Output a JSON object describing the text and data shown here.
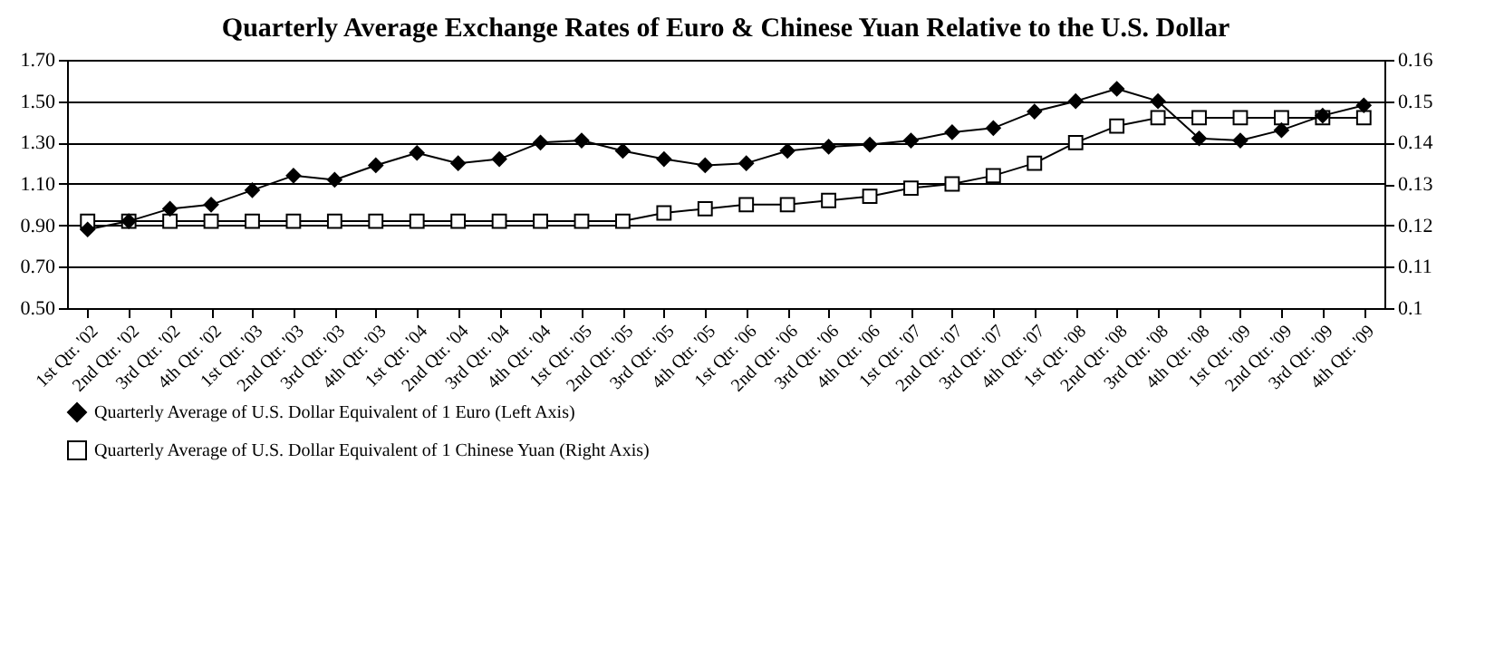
{
  "chart_data": {
    "type": "line",
    "title": "Quarterly Average Exchange Rates of Euro & Chinese Yuan Relative to the U.S. Dollar",
    "categories": [
      "1st Qtr. '02",
      "2nd Qtr. '02",
      "3rd Qtr. '02",
      "4th Qtr. '02",
      "1st Qtr. '03",
      "2nd Qtr. '03",
      "3rd Qtr. '03",
      "4th Qtr. '03",
      "1st Qtr. '04",
      "2nd Qtr. '04",
      "3rd Qtr. '04",
      "4th Qtr. '04",
      "1st Qtr. '05",
      "2nd Qtr. '05",
      "3rd Qtr. '05",
      "4th Qtr. '05",
      "1st Qtr. '06",
      "2nd Qtr. '06",
      "3rd Qtr. '06",
      "4th Qtr. '06",
      "1st Qtr. '07",
      "2nd Qtr. '07",
      "3rd Qtr. '07",
      "4th Qtr. '07",
      "1st Qtr. '08",
      "2nd Qtr. '08",
      "3rd Qtr. '08",
      "4th Qtr. '08",
      "1st Qtr. '09",
      "2nd Qtr. '09",
      "3rd Qtr. '09",
      "4th Qtr. '09"
    ],
    "series": [
      {
        "name": "Quarterly Average  of U.S. Dollar Equivalent of 1 Euro (Left Axis)",
        "color": "#000000",
        "marker": "diamond",
        "values": [
          0.88,
          0.92,
          0.98,
          1.0,
          1.07,
          1.14,
          1.12,
          1.19,
          1.25,
          1.2,
          1.22,
          1.3,
          1.31,
          1.26,
          1.22,
          1.19,
          1.2,
          1.26,
          1.28,
          1.29,
          1.31,
          1.35,
          1.37,
          1.45,
          1.5,
          1.56,
          1.5,
          1.32,
          1.31,
          1.36,
          1.43,
          1.48
        ]
      },
      {
        "name": "Quarterly Average  of U.S. Dollar Equivalent of 1 Chinese Yuan (Right Axis)",
        "color": "#000000",
        "marker": "square",
        "axis": "y2",
        "values": [
          0.121,
          0.121,
          0.121,
          0.121,
          0.121,
          0.121,
          0.121,
          0.121,
          0.121,
          0.121,
          0.121,
          0.121,
          0.121,
          0.121,
          0.123,
          0.124,
          0.125,
          0.125,
          0.126,
          0.127,
          0.129,
          0.13,
          0.132,
          0.135,
          0.14,
          0.144,
          0.146,
          0.146,
          0.146,
          0.146,
          0.146,
          0.146
        ]
      }
    ],
    "ylim": [
      0.5,
      1.7
    ],
    "yticks": [
      {
        "value": 0.5,
        "label": "0.50"
      },
      {
        "value": 0.7,
        "label": "0.70"
      },
      {
        "value": 0.9,
        "label": "0.90"
      },
      {
        "value": 1.1,
        "label": "1.10"
      },
      {
        "value": 1.3,
        "label": "1.30"
      },
      {
        "value": 1.5,
        "label": "1.50"
      },
      {
        "value": 1.7,
        "label": "1.70"
      }
    ],
    "y2lim": [
      0.1,
      0.16
    ],
    "y2ticks": [
      0.1,
      0.11,
      0.12,
      0.13,
      0.14,
      0.15,
      0.16
    ],
    "grid": "y",
    "legend": "bottom"
  }
}
